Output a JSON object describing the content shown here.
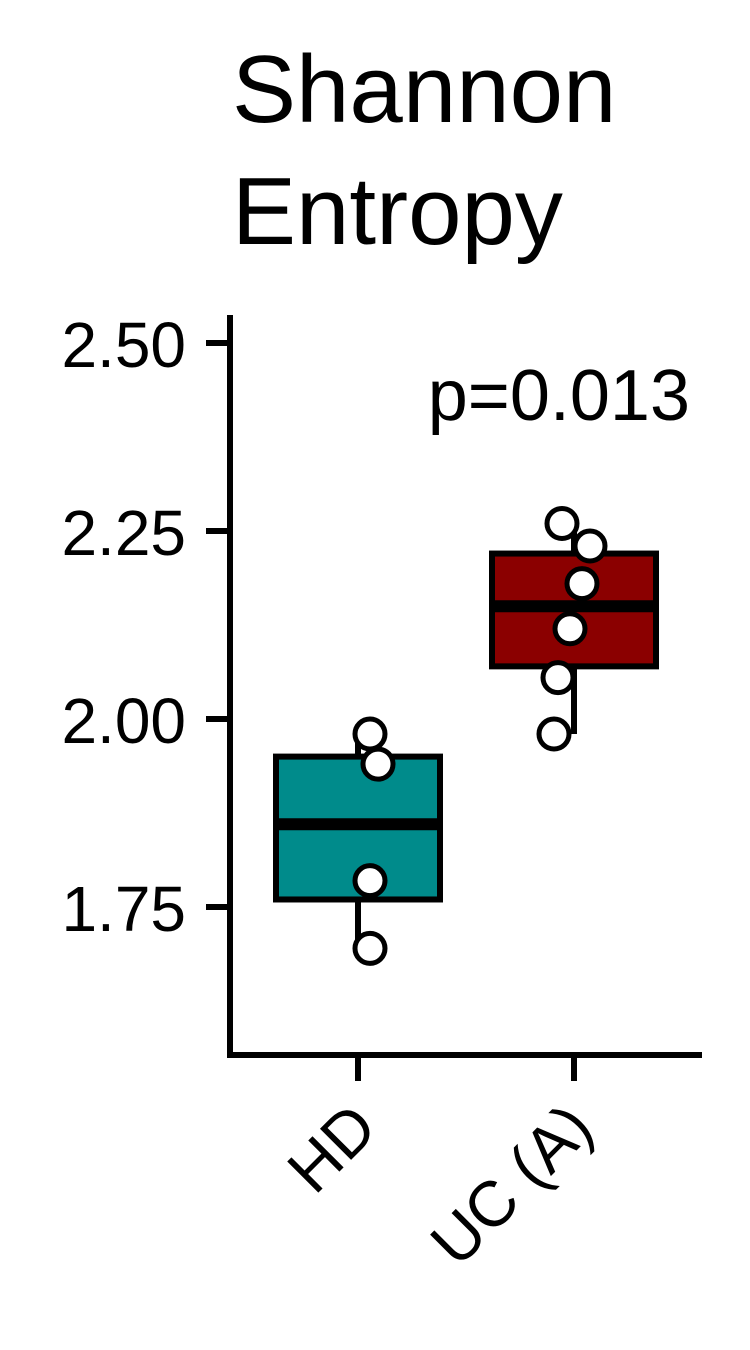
{
  "chart_data": {
    "type": "box",
    "title_lines": [
      "Shannon",
      "Entropy"
    ],
    "xlabel": "",
    "ylabel": "",
    "categories": [
      "HD",
      "UC (A)"
    ],
    "colors": [
      "#008B8B",
      "#8B0000"
    ],
    "ylim": [
      1.55,
      2.54
    ],
    "yticks": [
      1.75,
      2.0,
      2.25,
      2.5
    ],
    "ytick_labels": [
      "1.75",
      "2.00",
      "2.25",
      "2.50"
    ],
    "annotation": "p=0.013",
    "grid": false,
    "legend": "none",
    "boxes": [
      {
        "category": "HD",
        "lower_whisker": 1.69,
        "q1": 1.76,
        "median": 1.86,
        "q3": 1.95,
        "upper_whisker": 1.98
      },
      {
        "category": "UC (A)",
        "lower_whisker": 1.98,
        "q1": 2.07,
        "median": 2.15,
        "q3": 2.22,
        "upper_whisker": 2.26
      }
    ],
    "points": [
      {
        "category": "HD",
        "values": [
          1.98,
          1.94,
          1.785,
          1.695
        ]
      },
      {
        "category": "UC (A)",
        "values": [
          2.26,
          2.23,
          2.18,
          2.12,
          2.055,
          1.98
        ]
      }
    ]
  }
}
